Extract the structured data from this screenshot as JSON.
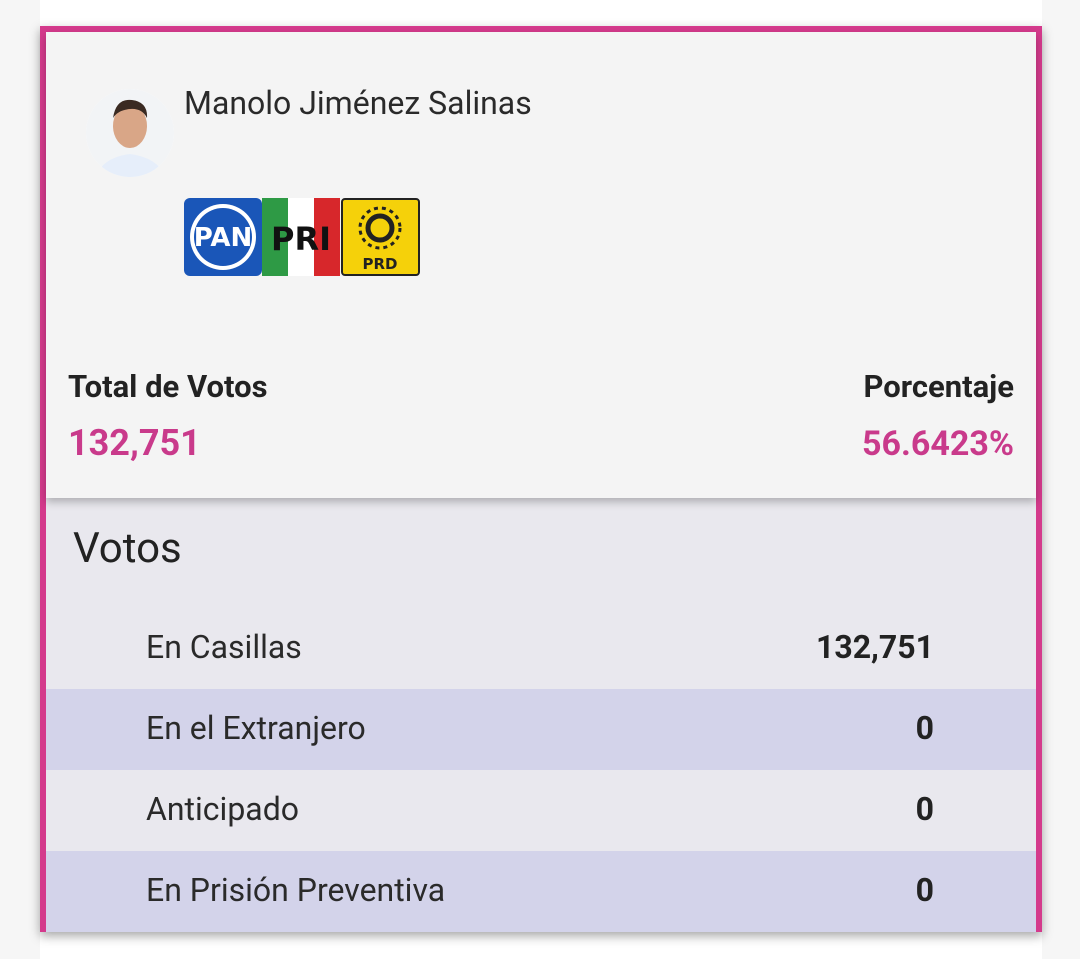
{
  "candidate": {
    "name": "Manolo Jiménez Salinas",
    "parties": [
      "PAN",
      "PRI",
      "PRD"
    ]
  },
  "summary": {
    "total_label": "Total de Votos",
    "total_value": "132,751",
    "percent_label": "Porcentaje",
    "percent_value": "56.6423%"
  },
  "votes": {
    "title": "Votos",
    "rows": [
      [
        "En Casillas",
        "132,751"
      ],
      [
        "En el Extranjero",
        "0"
      ],
      [
        "Anticipado",
        "0"
      ],
      [
        "En Prisión Preventiva",
        "0"
      ]
    ]
  }
}
